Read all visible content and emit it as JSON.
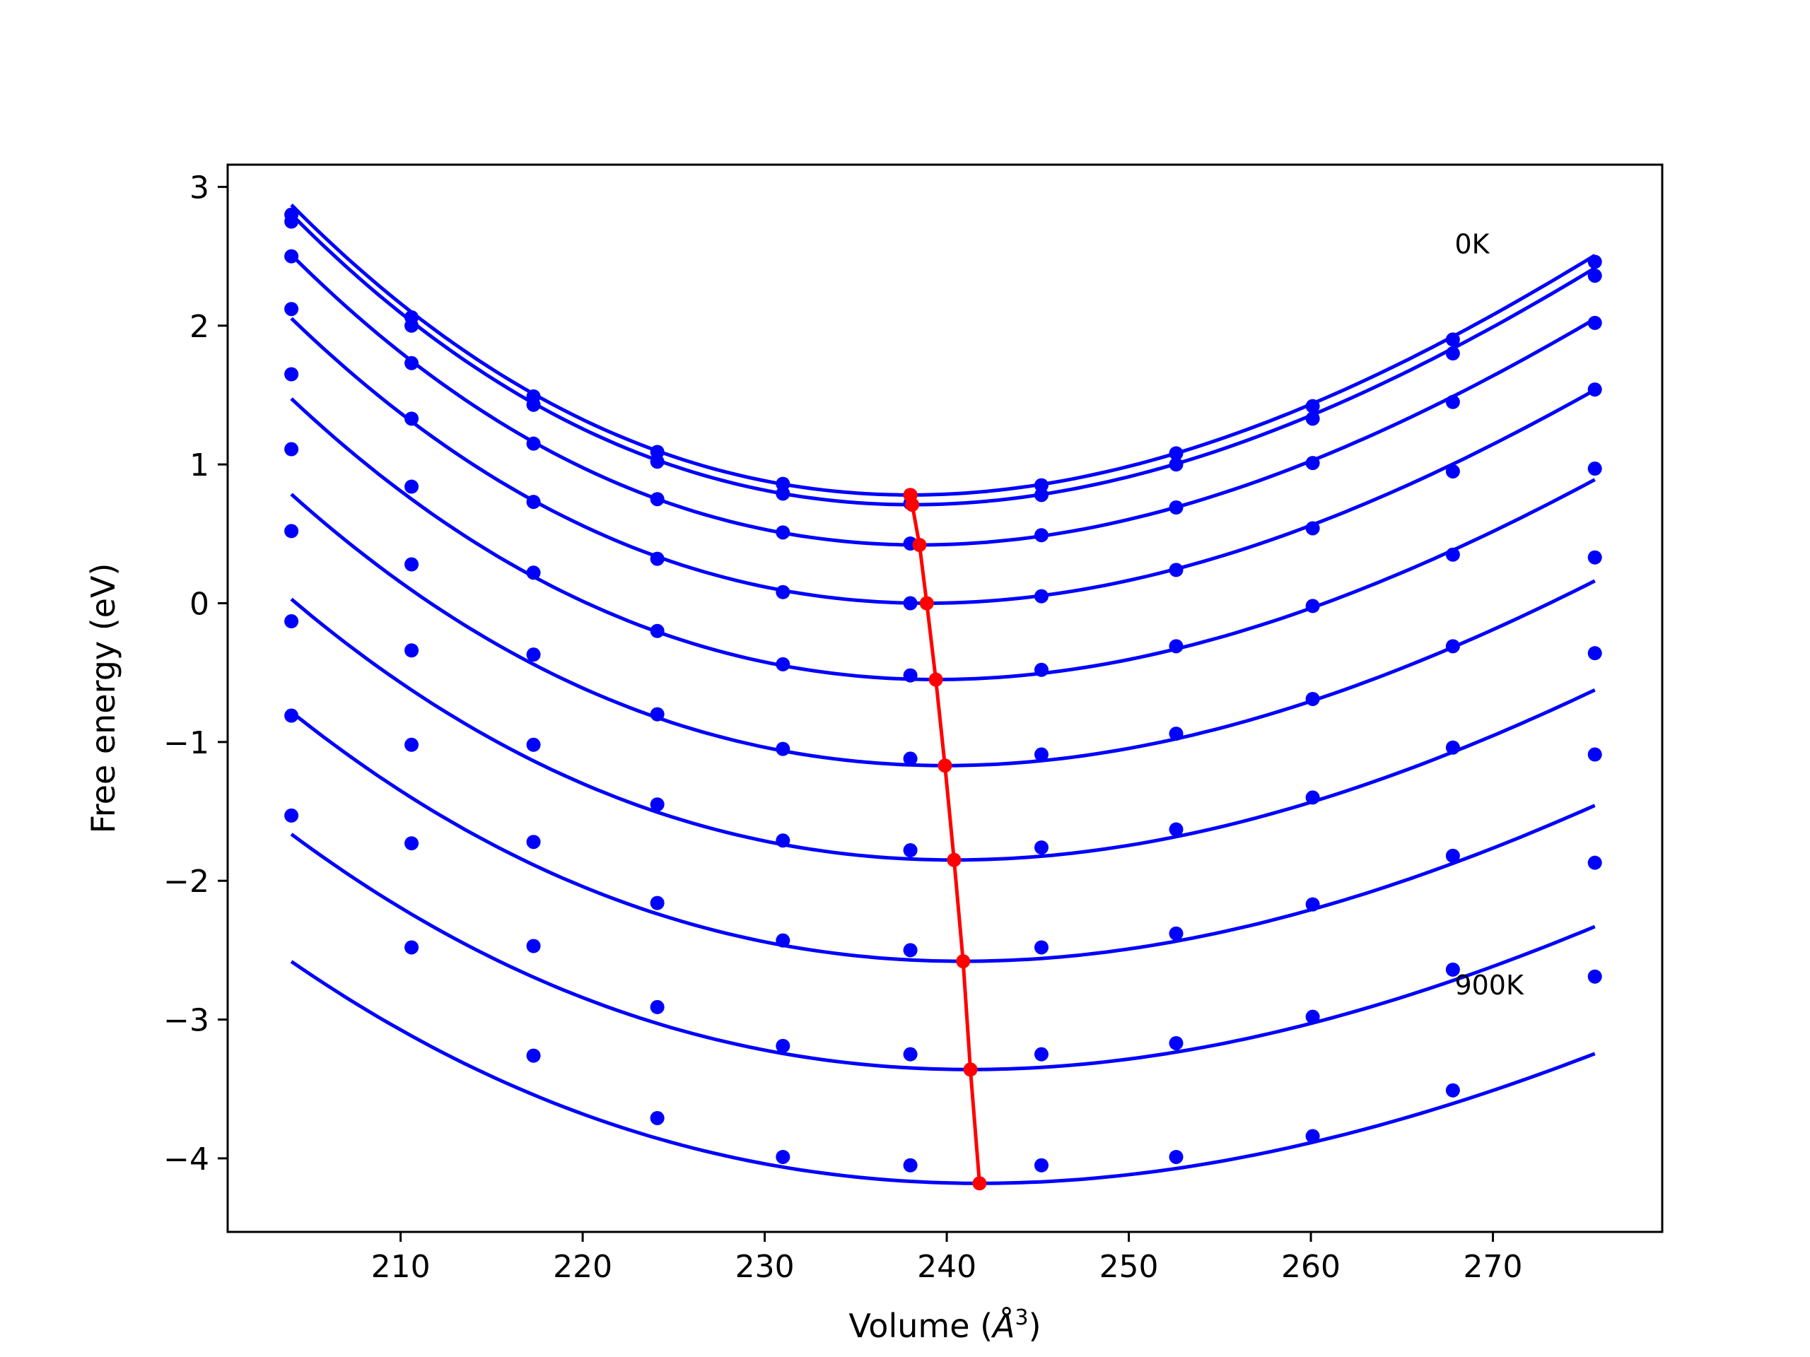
{
  "chart_data": {
    "type": "scatter",
    "title": "",
    "xlabel": "Volume (",
    "xlabel_unit": "Å",
    "xlabel_exp": "3",
    "xlabel_close": ")",
    "ylabel": "Free energy (eV)",
    "xlim": [
      200.5,
      279.3
    ],
    "ylim": [
      -4.53,
      3.16
    ],
    "xticks": [
      210,
      220,
      230,
      240,
      250,
      260,
      270
    ],
    "xtick_labels": [
      "210",
      "220",
      "230",
      "240",
      "250",
      "260",
      "270"
    ],
    "yticks": [
      3,
      2,
      1,
      0,
      -1,
      -2,
      -3,
      -4
    ],
    "ytick_labels": [
      "3",
      "2",
      "1",
      "0",
      "−1",
      "−2",
      "−3",
      "−4"
    ],
    "grid": false,
    "legend": "none",
    "annotations": [
      {
        "text": "0K",
        "x": 267.9,
        "y": 2.52
      },
      {
        "text": "900K",
        "x": 267.9,
        "y": -2.82
      }
    ],
    "x": [
      204.0,
      210.6,
      217.3,
      224.1,
      231.0,
      238.0,
      245.2,
      252.6,
      260.1,
      267.8,
      275.6
    ],
    "series": [
      {
        "color": "#0000ff",
        "values": [
          2.8,
          2.06,
          1.49,
          1.09,
          0.86,
          0.78,
          0.85,
          1.08,
          1.42,
          1.9,
          2.46
        ],
        "fit": {
          "vmin": 238.0,
          "fmin": 0.78,
          "a": 0.00153,
          "b": 8.2e-06
        }
      },
      {
        "color": "#0000ff",
        "values": [
          2.75,
          2.0,
          1.43,
          1.02,
          0.79,
          0.72,
          0.78,
          1.0,
          1.33,
          1.8,
          2.36
        ],
        "fit": {
          "vmin": 238.1,
          "fmin": 0.71,
          "a": 0.00152,
          "b": 8.2e-06
        }
      },
      {
        "color": "#0000ff",
        "values": [
          2.5,
          1.73,
          1.15,
          0.75,
          0.51,
          0.43,
          0.49,
          0.69,
          1.01,
          1.45,
          2.02
        ],
        "fit": {
          "vmin": 238.5,
          "fmin": 0.42,
          "a": 0.00148,
          "b": 8e-06
        }
      },
      {
        "color": "#0000ff",
        "values": [
          2.12,
          1.33,
          0.73,
          0.32,
          0.08,
          0.0,
          0.05,
          0.24,
          0.54,
          0.95,
          1.54
        ],
        "fit": {
          "vmin": 238.9,
          "fmin": 0.0,
          "a": 0.00142,
          "b": 7.6e-06
        }
      },
      {
        "color": "#0000ff",
        "values": [
          1.65,
          0.84,
          0.22,
          -0.2,
          -0.44,
          -0.52,
          -0.48,
          -0.31,
          -0.02,
          0.35,
          0.97
        ],
        "fit": {
          "vmin": 239.4,
          "fmin": -0.55,
          "a": 0.00136,
          "b": 7.2e-06
        }
      },
      {
        "color": "#0000ff",
        "values": [
          1.11,
          0.28,
          -0.37,
          -0.8,
          -1.05,
          -1.12,
          -1.09,
          -0.94,
          -0.69,
          -0.31,
          0.33
        ],
        "fit": {
          "vmin": 239.9,
          "fmin": -1.17,
          "a": 0.00128,
          "b": 6.6e-06
        }
      },
      {
        "color": "#0000ff",
        "values": [
          0.52,
          -0.34,
          -1.02,
          -1.45,
          -1.71,
          -1.78,
          -1.76,
          -1.63,
          -1.4,
          -1.04,
          -0.36
        ],
        "fit": {
          "vmin": 240.4,
          "fmin": -1.85,
          "a": 0.0012,
          "b": 6e-06
        }
      },
      {
        "color": "#0000ff",
        "values": [
          -0.13,
          -1.02,
          -1.72,
          -2.16,
          -2.43,
          -2.5,
          -2.48,
          -2.38,
          -2.17,
          -1.82,
          -1.09
        ],
        "fit": {
          "vmin": 240.9,
          "fmin": -2.58,
          "a": 0.00112,
          "b": 5.4e-06
        }
      },
      {
        "color": "#0000ff",
        "values": [
          -0.81,
          -1.73,
          -2.47,
          -2.91,
          -3.19,
          -3.25,
          -3.25,
          -3.17,
          -2.98,
          -2.64,
          -1.87
        ],
        "fit": {
          "vmin": 241.3,
          "fmin": -3.36,
          "a": 0.00104,
          "b": 4.8e-06
        }
      },
      {
        "color": "#0000ff",
        "values": [
          -1.53,
          -2.48,
          -3.26,
          -3.71,
          -3.99,
          -4.05,
          -4.05,
          -3.99,
          -3.84,
          -3.51,
          -2.69
        ],
        "fit": {
          "vmin": 241.8,
          "fmin": -4.18,
          "a": 0.00096,
          "b": 4.2e-06
        }
      }
    ],
    "minima_line": {
      "color": "#ff0000",
      "x": [
        238.0,
        238.1,
        238.5,
        238.9,
        239.4,
        239.9,
        240.4,
        240.9,
        241.3,
        241.8
      ],
      "y": [
        0.78,
        0.71,
        0.42,
        0.0,
        -0.55,
        -1.17,
        -1.85,
        -2.58,
        -3.36,
        -4.18
      ]
    }
  }
}
